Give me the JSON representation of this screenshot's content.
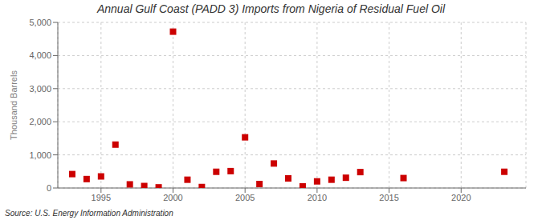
{
  "chart_data": {
    "type": "scatter",
    "title": "Annual Gulf Coast (PADD 3) Imports from Nigeria of Residual Fuel Oil",
    "ylabel": "Thousand Barrels",
    "source": "Source: U.S. Energy Information Administration",
    "x": [
      1993,
      1994,
      1995,
      1996,
      1997,
      1998,
      1999,
      2000,
      2001,
      2002,
      2003,
      2004,
      2005,
      2006,
      2007,
      2008,
      2009,
      2010,
      2011,
      2012,
      2013,
      2016,
      2023
    ],
    "values": [
      420,
      270,
      350,
      1310,
      110,
      60,
      20,
      4720,
      250,
      30,
      490,
      510,
      1530,
      120,
      740,
      290,
      50,
      200,
      250,
      310,
      480,
      300,
      490
    ],
    "color": "#cc0000",
    "marker": "square",
    "xlim": [
      1992,
      2024.5
    ],
    "xticks": [
      1995,
      2000,
      2005,
      2010,
      2015,
      2020
    ],
    "ylim": [
      0,
      5000
    ],
    "yticks": [
      0,
      {
        "value": 1000,
        "label": "1,000"
      },
      {
        "value": 2000,
        "label": "2,000"
      },
      {
        "value": 3000,
        "label": "3,000"
      },
      {
        "value": 4000,
        "label": "4,000"
      },
      {
        "value": 5000,
        "label": "5,000"
      }
    ],
    "grid": true
  }
}
